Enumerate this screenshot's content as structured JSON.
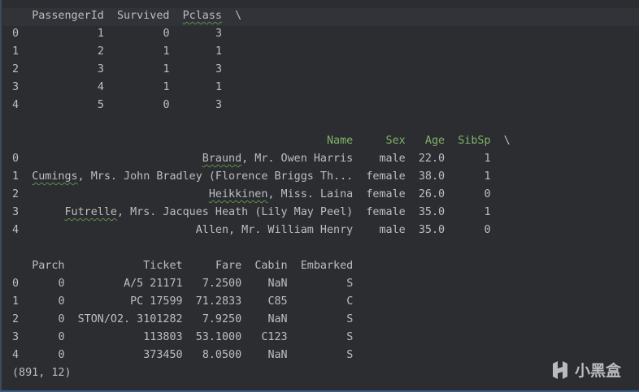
{
  "console": {
    "blocks": [
      {
        "columns": [
          "PassengerId",
          "Survived",
          "Pclass"
        ],
        "continued": "\\",
        "header_color": "#bcbec4",
        "index": [
          "0",
          "1",
          "2",
          "3",
          "4"
        ],
        "rows": [
          [
            "1",
            "0",
            "3"
          ],
          [
            "2",
            "1",
            "1"
          ],
          [
            "3",
            "1",
            "3"
          ],
          [
            "4",
            "1",
            "1"
          ],
          [
            "5",
            "0",
            "3"
          ]
        ]
      },
      {
        "columns": [
          "Name",
          "Sex",
          "Age",
          "SibSp"
        ],
        "continued": "\\",
        "header_color": "#7fb26a",
        "index": [
          "0",
          "1",
          "2",
          "3",
          "4"
        ],
        "rows": [
          [
            "Braund, Mr. Owen Harris",
            "male",
            "22.0",
            "1"
          ],
          [
            "Cumings, Mrs. John Bradley (Florence Briggs Th...",
            "female",
            "38.0",
            "1"
          ],
          [
            "Heikkinen, Miss. Laina",
            "female",
            "26.0",
            "0"
          ],
          [
            "Futrelle, Mrs. Jacques Heath (Lily May Peel)",
            "female",
            "35.0",
            "1"
          ],
          [
            "Allen, Mr. William Henry",
            "male",
            "35.0",
            "0"
          ]
        ]
      },
      {
        "columns": [
          "Parch",
          "Ticket",
          "Fare",
          "Cabin",
          "Embarked"
        ],
        "continued": "",
        "header_color": "#bcbec4",
        "index": [
          "0",
          "1",
          "2",
          "3",
          "4"
        ],
        "rows": [
          [
            "0",
            "A/5 21171",
            "7.2500",
            "NaN",
            "S"
          ],
          [
            "0",
            "PC 17599",
            "71.2833",
            "C85",
            "C"
          ],
          [
            "0",
            "STON/O2. 3101282",
            "7.9250",
            "NaN",
            "S"
          ],
          [
            "0",
            "113803",
            "53.1000",
            "C123",
            "S"
          ],
          [
            "0",
            "373450",
            "8.0500",
            "NaN",
            "S"
          ]
        ]
      }
    ],
    "shape": "(891, 12)"
  },
  "watermark": {
    "text": "小黑盒",
    "icon": "xiaoheihe-logo-icon"
  }
}
